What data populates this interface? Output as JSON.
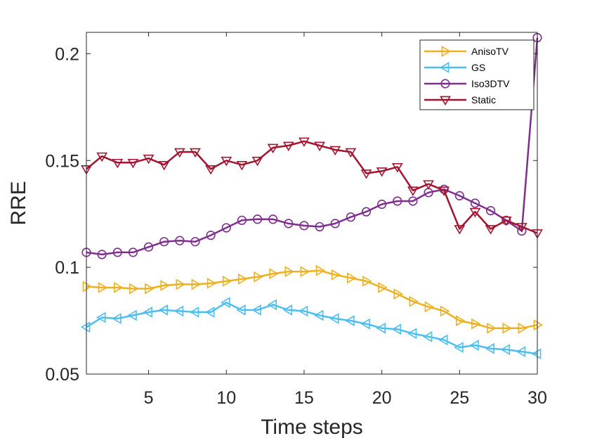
{
  "chart_data": {
    "type": "line",
    "title": "",
    "xlabel": "Time steps",
    "ylabel": "RRE",
    "xlim": [
      1,
      30
    ],
    "ylim": [
      0.05,
      0.21
    ],
    "xticks": [
      5,
      10,
      15,
      20,
      25,
      30
    ],
    "xtick_labels": [
      "5",
      "10",
      "15",
      "20",
      "25",
      "30"
    ],
    "yticks": [
      0.05,
      0.1,
      0.15,
      0.2
    ],
    "ytick_labels": [
      "0.05",
      "0.1",
      "0.15",
      "0.2"
    ],
    "grid": false,
    "legend_position": "top-right",
    "x": [
      1,
      2,
      3,
      4,
      5,
      6,
      7,
      8,
      9,
      10,
      11,
      12,
      13,
      14,
      15,
      16,
      17,
      18,
      19,
      20,
      21,
      22,
      23,
      24,
      25,
      26,
      27,
      28,
      29,
      30
    ],
    "series": [
      {
        "name": "AnisoTV",
        "color": "#EDB120",
        "marker": "triangle-right",
        "values": [
          0.091,
          0.0905,
          0.0905,
          0.09,
          0.09,
          0.0915,
          0.092,
          0.092,
          0.0925,
          0.0935,
          0.0945,
          0.0955,
          0.097,
          0.098,
          0.098,
          0.0985,
          0.0965,
          0.095,
          0.0935,
          0.0905,
          0.0875,
          0.084,
          0.0815,
          0.0795,
          0.075,
          0.0735,
          0.0715,
          0.0715,
          0.0715,
          0.073
        ]
      },
      {
        "name": "GS",
        "color": "#4DBEEE",
        "marker": "triangle-left",
        "values": [
          0.072,
          0.0765,
          0.076,
          0.0775,
          0.079,
          0.08,
          0.0795,
          0.079,
          0.079,
          0.0835,
          0.08,
          0.08,
          0.0825,
          0.08,
          0.0795,
          0.0775,
          0.076,
          0.075,
          0.0735,
          0.0715,
          0.071,
          0.069,
          0.0675,
          0.066,
          0.0625,
          0.0635,
          0.062,
          0.0615,
          0.0605,
          0.0595
        ]
      },
      {
        "name": "Iso3DTV",
        "color": "#7E2F8E",
        "marker": "circle",
        "values": [
          0.107,
          0.106,
          0.107,
          0.107,
          0.1095,
          0.112,
          0.1125,
          0.112,
          0.115,
          0.1185,
          0.122,
          0.1225,
          0.1225,
          0.1205,
          0.1195,
          0.119,
          0.1205,
          0.1235,
          0.126,
          0.1295,
          0.131,
          0.131,
          0.135,
          0.1365,
          0.1335,
          0.13,
          0.1265,
          0.122,
          0.117,
          0.2075
        ]
      },
      {
        "name": "Static",
        "color": "#A2142F",
        "marker": "triangle-down",
        "values": [
          0.146,
          0.152,
          0.149,
          0.149,
          0.151,
          0.148,
          0.154,
          0.154,
          0.146,
          0.15,
          0.148,
          0.15,
          0.156,
          0.157,
          0.159,
          0.157,
          0.155,
          0.154,
          0.144,
          0.145,
          0.147,
          0.136,
          0.139,
          0.136,
          0.118,
          0.126,
          0.118,
          0.122,
          0.119,
          0.116
        ]
      }
    ]
  }
}
